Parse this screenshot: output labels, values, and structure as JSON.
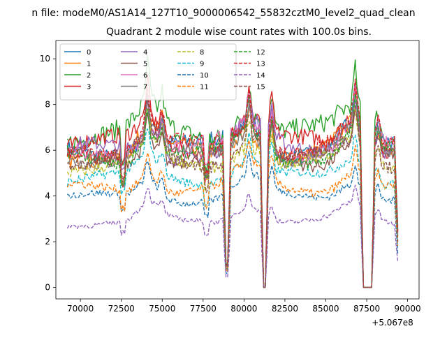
{
  "chart_data": {
    "type": "line",
    "suptitle": "n file: modeM0/AS1A14_127T10_9000006542_55832cztM0_level2_quad_clean",
    "title": "Quadrant 2 module wise count rates with 100.0s bins.",
    "xlabel": "",
    "ylabel": "",
    "x_offset_label": "+5.067e8",
    "xlim": [
      68500,
      90700
    ],
    "ylim": [
      -0.5,
      10.8
    ],
    "xticks": [
      70000,
      72500,
      75000,
      77500,
      80000,
      82500,
      85000,
      87500,
      90000
    ],
    "xtick_labels": [
      "70000",
      "72500",
      "75000",
      "77500",
      "80000",
      "82500",
      "85000",
      "87500",
      "90000"
    ],
    "yticks": [
      0,
      2,
      4,
      6,
      8,
      10
    ],
    "ytick_labels": [
      "0",
      "2",
      "4",
      "6",
      "8",
      "10"
    ],
    "x_range": [
      69200,
      89400
    ],
    "bin_seconds": 100,
    "legend": {
      "location": "upper-left",
      "columns": 4
    },
    "features": {
      "broad_bumps": [
        {
          "x": 74200,
          "amp": 1.0,
          "width": 900
        },
        {
          "x": 80300,
          "amp": 1.1,
          "width": 1300
        },
        {
          "x": 86700,
          "amp": 1.0,
          "width": 1200
        }
      ],
      "sharp_peaks": [
        {
          "x": 74100,
          "amp": 0.55
        },
        {
          "x": 75000,
          "amp": 0.35
        },
        {
          "x": 80300,
          "amp": 0.5
        },
        {
          "x": 81700,
          "amp": 0.5
        },
        {
          "x": 86800,
          "amp": 0.55
        },
        {
          "x": 88200,
          "amp": 0.3
        }
      ],
      "dips": [
        {
          "from": 78900,
          "to": 79000,
          "depth": 0.85
        },
        {
          "from": 81200,
          "to": 81300,
          "depth": 1.0
        },
        {
          "from": 87300,
          "to": 87800,
          "depth": 1.0
        },
        {
          "from": 89400,
          "to": 89400,
          "depth": 0.6
        }
      ],
      "bad_rows": [
        72600,
        77700
      ]
    },
    "series": [
      {
        "name": "0",
        "color": "#1f77b4",
        "dash": "solid",
        "level": 6.05,
        "noise": 0.3
      },
      {
        "name": "1",
        "color": "#ff7f0e",
        "dash": "solid",
        "level": 5.85,
        "noise": 0.3
      },
      {
        "name": "2",
        "color": "#2ca02c",
        "dash": "solid",
        "level": 6.7,
        "noise": 0.32
      },
      {
        "name": "3",
        "color": "#d62728",
        "dash": "solid",
        "level": 6.25,
        "noise": 0.28
      },
      {
        "name": "4",
        "color": "#9467bd",
        "dash": "solid",
        "level": 5.95,
        "noise": 0.28
      },
      {
        "name": "5",
        "color": "#8c564b",
        "dash": "solid",
        "level": 5.6,
        "noise": 0.25
      },
      {
        "name": "6",
        "color": "#e377c2",
        "dash": "solid",
        "level": 6.0,
        "noise": 0.27
      },
      {
        "name": "7",
        "color": "#7f7f7f",
        "dash": "solid",
        "level": 5.75,
        "noise": 0.25
      },
      {
        "name": "8",
        "color": "#bcbd22",
        "dash": "dashed",
        "level": 5.35,
        "noise": 0.25
      },
      {
        "name": "9",
        "color": "#17becf",
        "dash": "dashed",
        "level": 4.75,
        "noise": 0.22
      },
      {
        "name": "10",
        "color": "#1f77b4",
        "dash": "dashed",
        "level": 3.9,
        "noise": 0.2
      },
      {
        "name": "11",
        "color": "#ff7f0e",
        "dash": "dashed",
        "level": 4.3,
        "noise": 0.22
      },
      {
        "name": "12",
        "color": "#2ca02c",
        "dash": "dashed",
        "level": 5.75,
        "noise": 0.25
      },
      {
        "name": "13",
        "color": "#d62728",
        "dash": "dashed",
        "level": 6.1,
        "noise": 0.26
      },
      {
        "name": "14",
        "color": "#9467bd",
        "dash": "dashed",
        "level": 2.85,
        "noise": 0.2
      },
      {
        "name": "15",
        "color": "#8c564b",
        "dash": "dashed",
        "level": 5.55,
        "noise": 0.25
      }
    ]
  }
}
